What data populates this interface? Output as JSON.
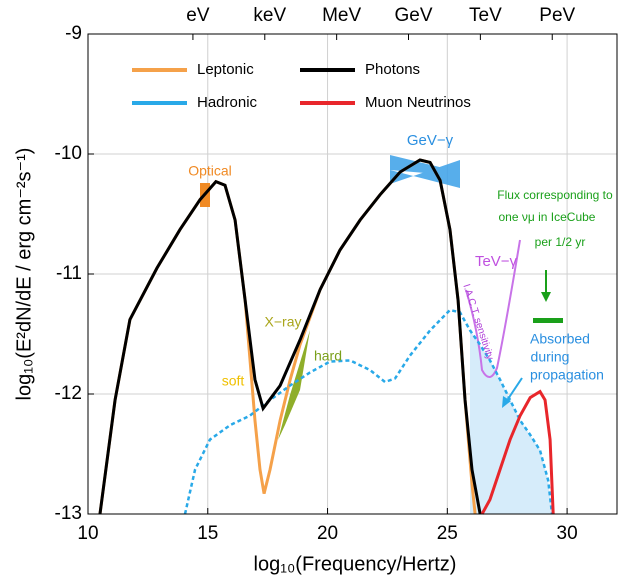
{
  "chart_data": {
    "type": "line",
    "xlabel": "log₁₀(Frequency/Hertz)",
    "ylabel": "log₁₀(E²dN/dE / erg cm⁻²s⁻¹)",
    "xlim": [
      10,
      32
    ],
    "ylim": [
      -13,
      -9
    ],
    "xticks": [
      10,
      15,
      20,
      25,
      30
    ],
    "yticks": [
      -13,
      -12,
      -11,
      -10,
      -9
    ],
    "x2ticks": [
      {
        "value": 14.38,
        "label": "eV"
      },
      {
        "value": 17.38,
        "label": "keV"
      },
      {
        "value": 20.38,
        "label": "MeV"
      },
      {
        "value": 23.38,
        "label": "GeV"
      },
      {
        "value": 26.38,
        "label": "TeV"
      },
      {
        "value": 29.38,
        "label": "PeV"
      }
    ],
    "grid": true,
    "series": [
      {
        "name": "Leptonic",
        "color": "#f5a14a",
        "style": "solid",
        "x": [
          10.5,
          11.13,
          11.75,
          12.88,
          13.84,
          14.68,
          15.34,
          15.72,
          16.14,
          16.56,
          16.97,
          17.18,
          17.35,
          17.6,
          18.02,
          18.44,
          18.85,
          19.69,
          20.52,
          21.36,
          22.19,
          23.03,
          23.86,
          24.28,
          24.7,
          25.11,
          25.45,
          25.74,
          26.03,
          26.16
        ],
        "values": [
          -13,
          -12.05,
          -11.38,
          -10.95,
          -10.63,
          -10.38,
          -10.23,
          -10.26,
          -10.55,
          -11.22,
          -12.22,
          -12.63,
          -12.83,
          -12.63,
          -12.22,
          -11.88,
          -11.59,
          -11.13,
          -10.8,
          -10.55,
          -10.34,
          -10.15,
          -10.05,
          -10.07,
          -10.22,
          -10.63,
          -11.22,
          -12.05,
          -12.75,
          -13
        ]
      },
      {
        "name": "Hadronic",
        "color": "#29a9e8",
        "style": "dashed",
        "x": [
          14.05,
          14.47,
          15.09,
          15.93,
          16.76,
          17.6,
          18.43,
          19.27,
          20.1,
          20.94,
          21.77,
          22.4,
          22.82,
          23.44,
          24.28,
          25.11,
          25.53,
          25.95,
          26.37,
          26.78,
          27.2,
          27.62,
          28.04,
          28.46,
          28.87,
          29.21,
          29.37
        ],
        "values": [
          -13,
          -12.63,
          -12.38,
          -12.26,
          -12.18,
          -12.05,
          -11.93,
          -11.82,
          -11.73,
          -11.72,
          -11.8,
          -11.9,
          -11.87,
          -11.68,
          -11.47,
          -11.3,
          -11.32,
          -11.47,
          -11.59,
          -11.72,
          -11.88,
          -12.05,
          -12.22,
          -12.34,
          -12.47,
          -12.72,
          -13
        ]
      },
      {
        "name": "Photons",
        "color": "#000000",
        "style": "solid",
        "x": [
          10.5,
          11.13,
          11.75,
          12.88,
          13.84,
          14.68,
          15.34,
          15.72,
          16.14,
          16.56,
          16.97,
          17.31,
          18.02,
          18.85,
          19.69,
          20.52,
          21.36,
          22.19,
          23.03,
          23.86,
          24.28,
          24.7,
          25.11,
          25.45,
          25.74,
          26.03,
          26.37
        ],
        "values": [
          -13,
          -12.05,
          -11.38,
          -10.95,
          -10.63,
          -10.38,
          -10.23,
          -10.26,
          -10.55,
          -11.22,
          -11.88,
          -12.12,
          -11.93,
          -11.55,
          -11.13,
          -10.8,
          -10.55,
          -10.34,
          -10.15,
          -10.05,
          -10.07,
          -10.22,
          -10.63,
          -11.22,
          -12.05,
          -12.63,
          -13
        ]
      },
      {
        "name": "Muon Neutrinos",
        "color": "#e8262b",
        "style": "solid",
        "x": [
          26.45,
          26.78,
          27.2,
          27.62,
          28.04,
          28.46,
          28.87,
          29.08,
          29.29,
          29.42
        ],
        "values": [
          -13,
          -12.88,
          -12.63,
          -12.38,
          -12.18,
          -12.03,
          -11.98,
          -12.05,
          -12.38,
          -13
        ]
      }
    ],
    "annotations": [
      "Optical",
      "X−ray",
      "soft",
      "hard",
      "GeV−γ",
      "TeV−γ",
      "I.A.C.T. sensitivity",
      "Flux corresponding to",
      "one νμ in IceCube",
      "per 1/2 yr",
      "Absorbed",
      "during",
      "propagation"
    ]
  }
}
